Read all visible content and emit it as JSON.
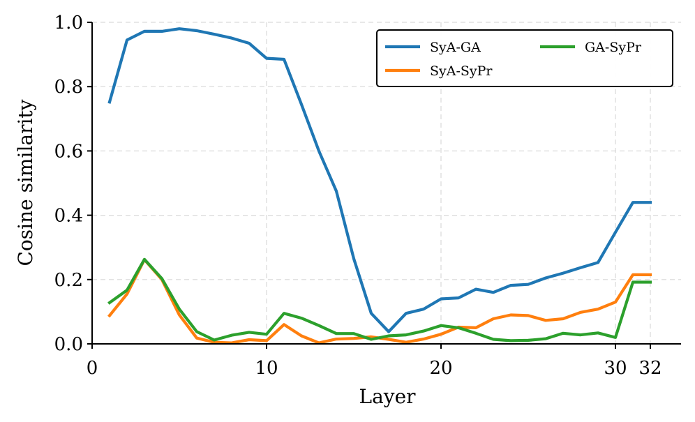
{
  "chart_data": {
    "type": "line",
    "title": "",
    "xlabel": "Layer",
    "ylabel": "Cosine similarity",
    "xlim": [
      0,
      33.5
    ],
    "ylim": [
      0.0,
      1.0
    ],
    "xticks": [
      0,
      10,
      20,
      30,
      32
    ],
    "xtick_labels": [
      "0",
      "10",
      "20",
      "30",
      "32"
    ],
    "yticks": [
      0.0,
      0.2,
      0.4,
      0.6,
      0.8,
      1.0
    ],
    "ytick_labels": [
      "0.0",
      "0.2",
      "0.4",
      "0.6",
      "0.8",
      "1.0"
    ],
    "grid": true,
    "legend": {
      "placement": "top-right",
      "columns": 2
    },
    "x": [
      1,
      2,
      3,
      4,
      5,
      6,
      7,
      8,
      9,
      10,
      11,
      12,
      13,
      14,
      15,
      16,
      17,
      18,
      19,
      20,
      21,
      22,
      23,
      24,
      25,
      26,
      27,
      28,
      29,
      30,
      31,
      32
    ],
    "series": [
      {
        "name": "SyA-GA",
        "color": "#1f77b4",
        "values": [
          0.752,
          0.945,
          0.972,
          0.972,
          0.98,
          0.974,
          0.963,
          0.951,
          0.935,
          0.888,
          0.885,
          0.745,
          0.6,
          0.475,
          0.265,
          0.095,
          0.038,
          0.095,
          0.108,
          0.14,
          0.143,
          0.17,
          0.16,
          0.182,
          0.185,
          0.205,
          0.22,
          0.237,
          0.253,
          0.347,
          0.44,
          0.44
        ]
      },
      {
        "name": "SyA-SyPr",
        "color": "#ff7f0e",
        "values": [
          0.088,
          0.155,
          0.262,
          0.2,
          0.09,
          0.018,
          0.005,
          0.003,
          0.013,
          0.01,
          0.06,
          0.025,
          0.003,
          0.015,
          0.017,
          0.022,
          0.014,
          0.005,
          0.015,
          0.03,
          0.052,
          0.05,
          0.078,
          0.09,
          0.088,
          0.073,
          0.078,
          0.098,
          0.108,
          0.13,
          0.215,
          0.215
        ]
      },
      {
        "name": "GA-SyPr",
        "color": "#2ca02c",
        "values": [
          0.128,
          0.167,
          0.263,
          0.203,
          0.108,
          0.038,
          0.012,
          0.027,
          0.036,
          0.03,
          0.095,
          0.08,
          0.057,
          0.032,
          0.032,
          0.014,
          0.025,
          0.028,
          0.04,
          0.057,
          0.05,
          0.033,
          0.014,
          0.01,
          0.011,
          0.016,
          0.033,
          0.028,
          0.034,
          0.02,
          0.192,
          0.192
        ]
      }
    ]
  }
}
